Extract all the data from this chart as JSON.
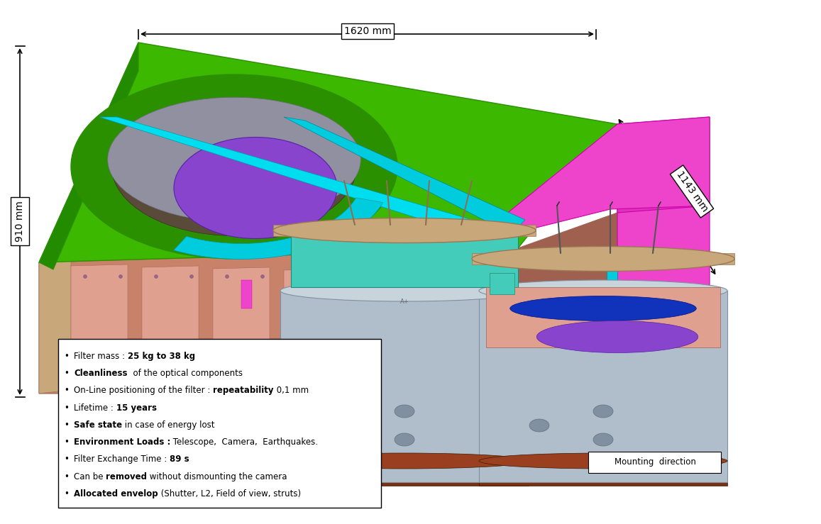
{
  "background_color": "#ffffff",
  "dim_1620_text": "1620 mm",
  "dim_1143_text": "1143 mm",
  "dim_910_text": "910 mm",
  "mounting_direction_text": "Mounting  direction",
  "bullet_lines": [
    {
      "prefix": "Filter mass : ",
      "bold": "25 kg to 38 kg",
      "suffix": ""
    },
    {
      "prefix": "",
      "bold": "Cleanliness",
      "suffix": "  of the optical components"
    },
    {
      "prefix": "On-Line positioning of the filter : ",
      "bold": "repeatability",
      "suffix": " 0,1 mm"
    },
    {
      "prefix": "Lifetime : ",
      "bold": "15 years",
      "suffix": ""
    },
    {
      "prefix": "",
      "bold": "Safe state",
      "suffix": " in case of energy lost"
    },
    {
      "prefix": "",
      "bold": "Environment Loads :",
      "suffix": " Telescope,  Camera,  Earthquakes."
    },
    {
      "prefix": "Filter Exchange Time : ",
      "bold": "89 s",
      "suffix": ""
    },
    {
      "prefix": "Can be ",
      "bold": "removed",
      "suffix": " without dismounting the camera"
    },
    {
      "prefix": "",
      "bold": "Allocated envelop",
      "suffix": " (Shutter, L2, Field of view, struts)"
    }
  ],
  "fig_width": 11.57,
  "fig_height": 7.39,
  "colors": {
    "green": "#3CB800",
    "green_dark": "#2A9000",
    "green_side": "#228B00",
    "salmon": "#C8826A",
    "salmon_light": "#DFA090",
    "salmon_dark": "#A06050",
    "magenta": "#EE44CC",
    "magenta_dark": "#CC00AA",
    "purple": "#8844CC",
    "purple_dark": "#5522AA",
    "cyan": "#00CCDD",
    "cyan_dark": "#008899",
    "teal": "#00BBAA",
    "blue": "#1133BB",
    "blue_dark": "#001188",
    "tan": "#C8A87A",
    "tan_dark": "#9A7855",
    "gray_blue": "#B0BECC",
    "gray_blue_dark": "#8090A0",
    "gray_blue_light": "#C8D4DC",
    "dark_brown": "#7A3010",
    "dark_brown_light": "#9A4020",
    "white": "#FFFFFF",
    "black": "#000000",
    "gray": "#888888",
    "gray_light": "#CCCCCC",
    "steel_gray": "#8899AA",
    "dark_gray": "#556677"
  }
}
